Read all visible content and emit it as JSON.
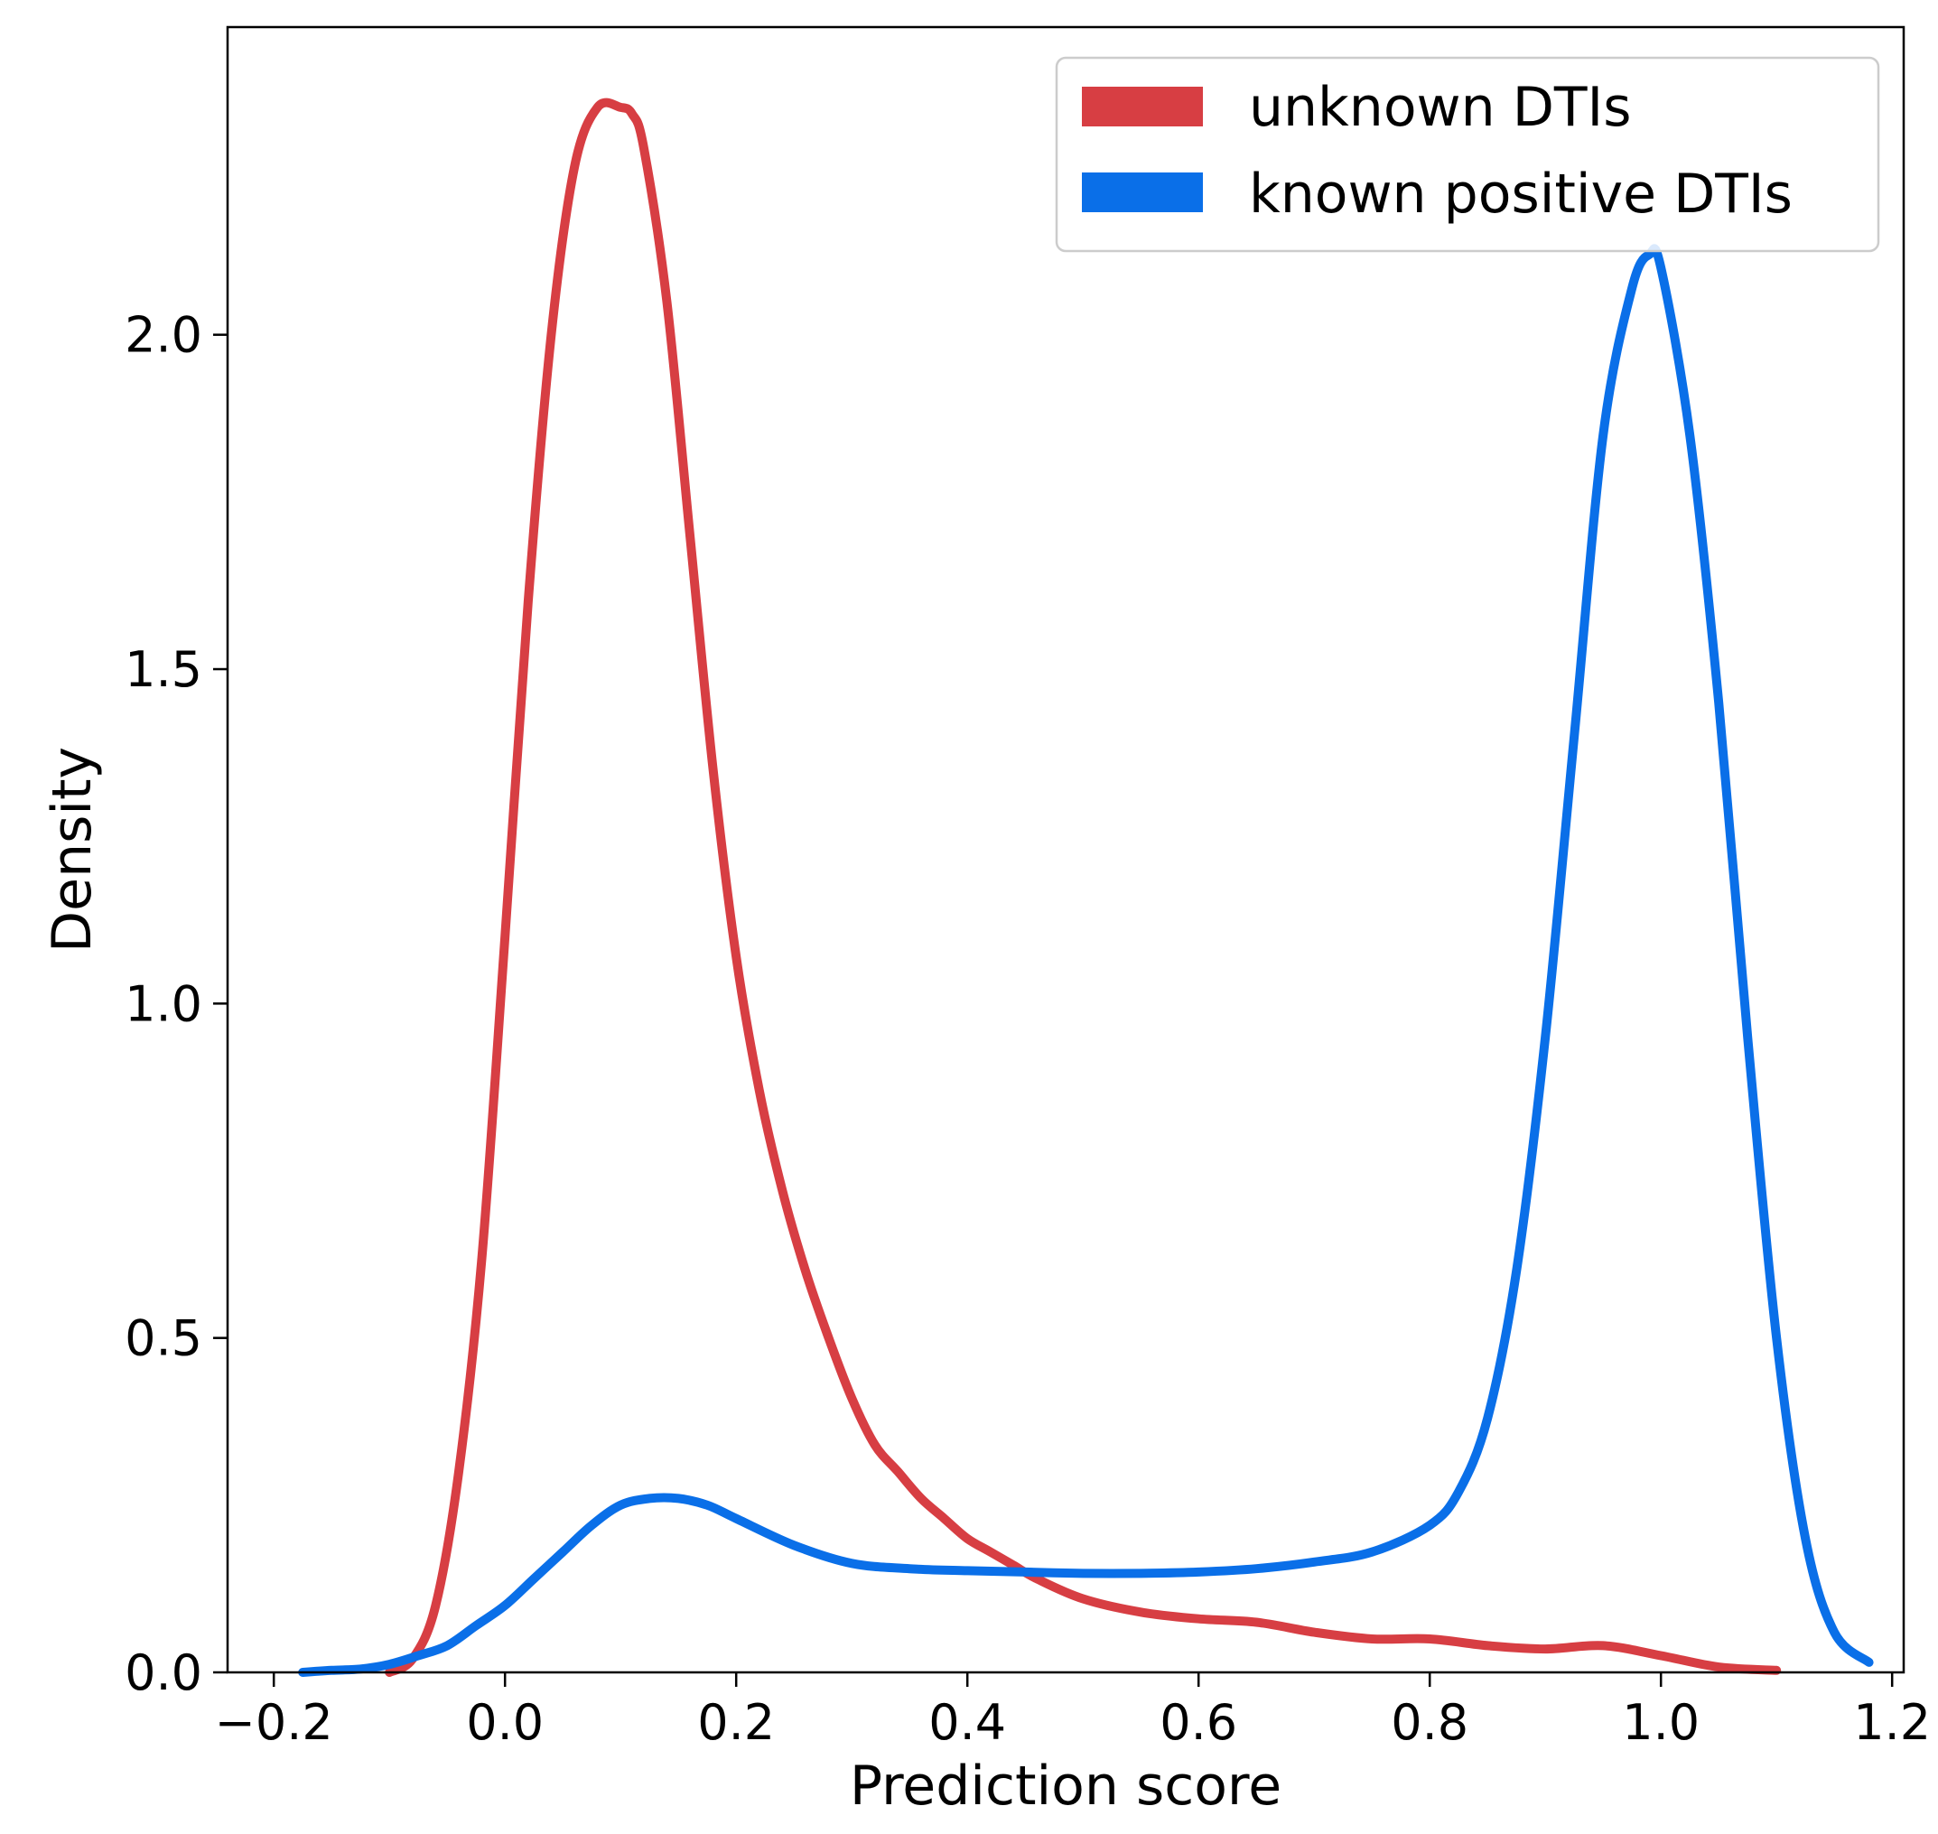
{
  "chart_data": {
    "type": "line",
    "title": "",
    "xlabel": "Prediction score",
    "ylabel": "Density",
    "xlim": [
      -0.24,
      1.21
    ],
    "ylim": [
      0.0,
      2.46
    ],
    "xticks": [
      -0.2,
      0.0,
      0.2,
      0.4,
      0.6,
      0.8,
      1.0,
      1.2
    ],
    "xtick_labels": [
      "−0.2",
      "0.0",
      "0.2",
      "0.4",
      "0.6",
      "0.8",
      "1.0",
      "1.2"
    ],
    "yticks": [
      0.0,
      0.5,
      1.0,
      1.5,
      2.0
    ],
    "ytick_labels": [
      "0.0",
      "0.5",
      "1.0",
      "1.5",
      "2.0"
    ],
    "grid": false,
    "legend_position": "top-right",
    "series": [
      {
        "name": "unknown DTIs",
        "color": "#d73e43",
        "x": [
          -0.1,
          -0.08,
          -0.06,
          -0.04,
          -0.02,
          0.0,
          0.02,
          0.04,
          0.06,
          0.08,
          0.1,
          0.11,
          0.12,
          0.14,
          0.16,
          0.18,
          0.2,
          0.22,
          0.24,
          0.26,
          0.28,
          0.3,
          0.32,
          0.34,
          0.36,
          0.38,
          0.4,
          0.42,
          0.44,
          0.46,
          0.5,
          0.55,
          0.6,
          0.65,
          0.7,
          0.75,
          0.8,
          0.85,
          0.9,
          0.95,
          1.0,
          1.05,
          1.1
        ],
        "y": [
          0.0,
          0.02,
          0.1,
          0.3,
          0.62,
          1.1,
          1.6,
          2.0,
          2.25,
          2.34,
          2.34,
          2.33,
          2.28,
          2.05,
          1.7,
          1.35,
          1.07,
          0.87,
          0.72,
          0.6,
          0.5,
          0.41,
          0.34,
          0.3,
          0.26,
          0.23,
          0.2,
          0.18,
          0.16,
          0.14,
          0.11,
          0.09,
          0.08,
          0.075,
          0.06,
          0.05,
          0.05,
          0.04,
          0.035,
          0.04,
          0.025,
          0.008,
          0.003
        ]
      },
      {
        "name": "known positive DTIs",
        "color": "#0a6fe8",
        "x": [
          -0.175,
          -0.15,
          -0.125,
          -0.1,
          -0.075,
          -0.05,
          -0.025,
          0.0,
          0.025,
          0.05,
          0.075,
          0.1,
          0.125,
          0.15,
          0.175,
          0.2,
          0.25,
          0.3,
          0.35,
          0.4,
          0.45,
          0.5,
          0.55,
          0.6,
          0.65,
          0.7,
          0.75,
          0.8,
          0.825,
          0.85,
          0.875,
          0.9,
          0.925,
          0.95,
          0.975,
          0.99,
          1.0,
          1.025,
          1.05,
          1.075,
          1.1,
          1.125,
          1.15,
          1.18
        ],
        "y": [
          0.0,
          0.003,
          0.005,
          0.012,
          0.025,
          0.04,
          0.07,
          0.1,
          0.14,
          0.18,
          0.22,
          0.25,
          0.26,
          0.26,
          0.25,
          0.23,
          0.19,
          0.163,
          0.155,
          0.152,
          0.15,
          0.148,
          0.148,
          0.15,
          0.155,
          0.165,
          0.18,
          0.22,
          0.27,
          0.38,
          0.6,
          0.95,
          1.4,
          1.85,
          2.07,
          2.12,
          2.1,
          1.85,
          1.45,
          0.95,
          0.5,
          0.2,
          0.06,
          0.015
        ]
      }
    ]
  }
}
